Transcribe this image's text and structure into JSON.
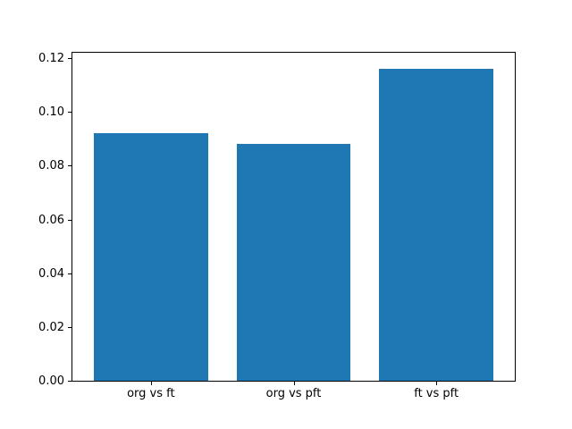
{
  "chart_data": {
    "type": "bar",
    "title": "",
    "xlabel": "",
    "ylabel": "",
    "categories": [
      "org vs ft",
      "org vs pft",
      "ft vs pft"
    ],
    "values": [
      0.092,
      0.088,
      0.116
    ],
    "yticks": [
      0.0,
      0.02,
      0.04,
      0.06,
      0.08,
      0.1,
      0.12
    ],
    "ytick_labels": [
      "0.00",
      "0.02",
      "0.04",
      "0.06",
      "0.08",
      "0.10",
      "0.12"
    ],
    "ylim": [
      0,
      0.122
    ],
    "bar_color": "#1f77b4",
    "grid": false,
    "legend": "none"
  }
}
